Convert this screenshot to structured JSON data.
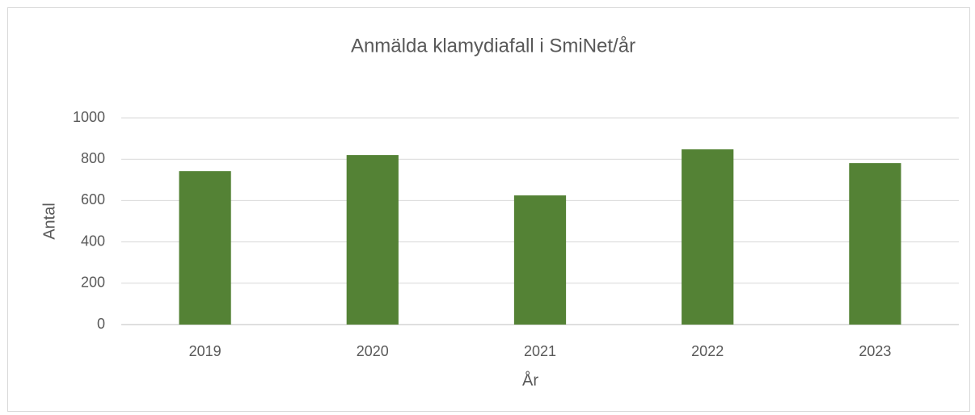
{
  "chart_data": {
    "type": "bar",
    "title": "Anmälda klamydiafall i SmiNet/år",
    "x_label": "År",
    "y_label": "Antal",
    "categories": [
      "2019",
      "2020",
      "2021",
      "2022",
      "2023"
    ],
    "values": [
      742,
      820,
      625,
      848,
      781
    ],
    "color": "#548235",
    "ylim": [
      0,
      1000
    ],
    "yticks": [
      0,
      200,
      400,
      600,
      800,
      1000
    ],
    "grid": true
  }
}
